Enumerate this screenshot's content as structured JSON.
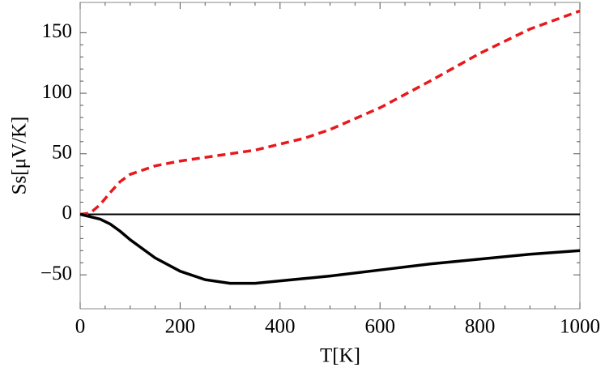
{
  "chart_data": {
    "type": "line",
    "xlabel": "T[K]",
    "ylabel": "Ss[μV/K]",
    "x": [
      0,
      20,
      40,
      60,
      80,
      100,
      150,
      200,
      250,
      300,
      350,
      400,
      450,
      500,
      600,
      700,
      800,
      900,
      1000
    ],
    "series": [
      {
        "color": "#e8191c",
        "dash": true,
        "values": [
          0,
          1,
          8,
          18,
          27,
          33,
          40,
          44,
          47,
          50,
          53,
          58,
          63,
          70,
          88,
          110,
          133,
          153,
          168
        ]
      },
      {
        "color": "#000000",
        "dash": false,
        "values": [
          0,
          -2,
          -4,
          -8,
          -14,
          -21,
          -36,
          -47,
          -54,
          -57,
          -57,
          -55,
          -53,
          -51,
          -46,
          -41,
          -37,
          -33,
          -30
        ]
      }
    ],
    "xlim": [
      0,
      1000
    ],
    "xticks": [
      0,
      200,
      400,
      600,
      800,
      1000
    ],
    "ylim": [
      -78,
      175
    ],
    "yticks": [
      {
        "value": -50,
        "label": "−50"
      },
      0,
      50,
      100,
      150
    ],
    "zero_line": true
  }
}
